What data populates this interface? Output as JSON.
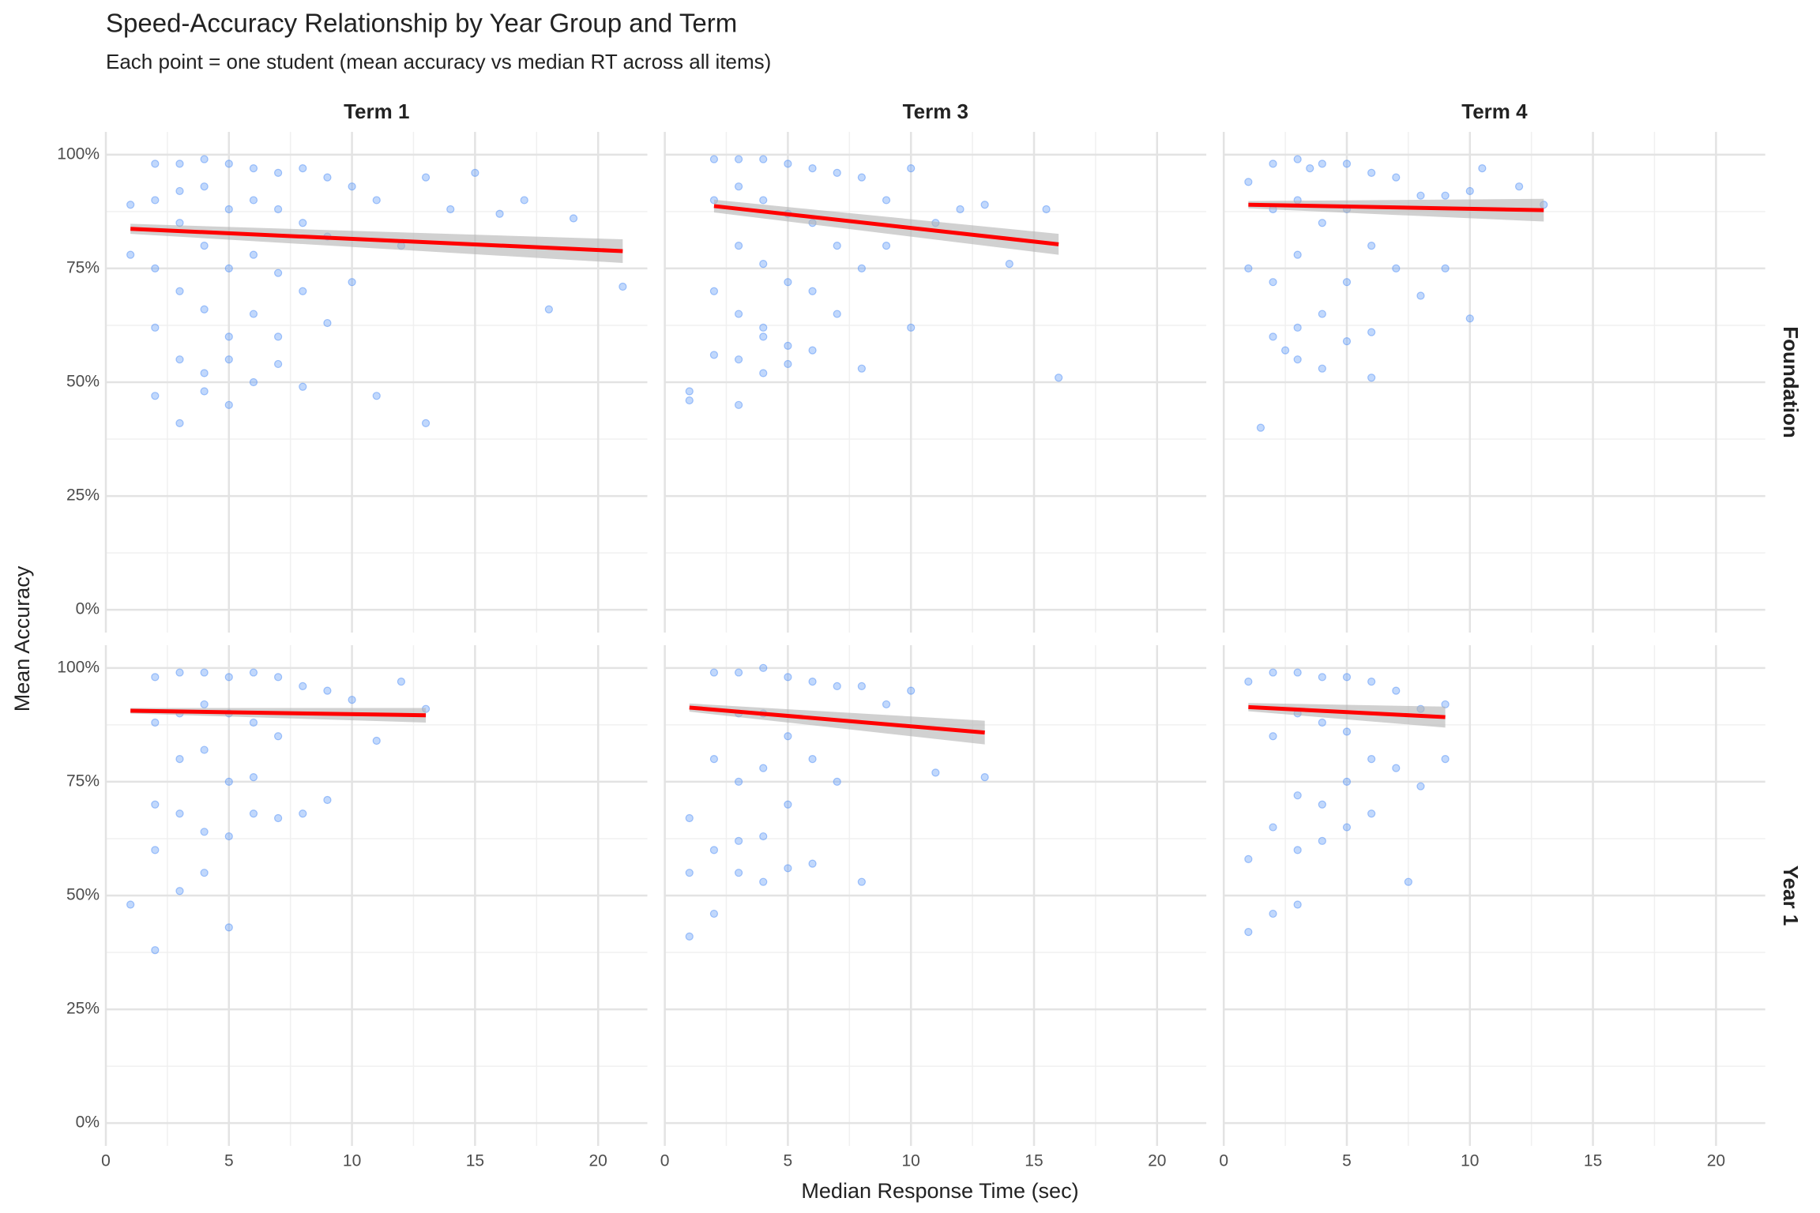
{
  "chart_data": {
    "type": "scatter",
    "title": "Speed-Accuracy Relationship by Year Group and Term",
    "subtitle": "Each point = one student (mean accuracy vs median RT across all items)",
    "x_label": "Median Response Time (sec)",
    "y_label": "Mean Accuracy",
    "columns": [
      "Term 1",
      "Term 3",
      "Term 4"
    ],
    "rows": [
      "Foundation",
      "Year 1"
    ],
    "xlim": [
      0,
      22
    ],
    "xticks": [
      0,
      5,
      10,
      15,
      20
    ],
    "x_minor_ticks": [
      2.5,
      7.5,
      12.5,
      17.5
    ],
    "ylim": [
      -5,
      105
    ],
    "yticks": [
      {
        "value": 0,
        "label": "0%"
      },
      {
        "value": 25,
        "label": "25%"
      },
      {
        "value": 50,
        "label": "50%"
      },
      {
        "value": 75,
        "label": "75%"
      },
      {
        "value": 100,
        "label": "100%"
      }
    ],
    "y_minor_ticks": [
      12.5,
      37.5,
      62.5,
      87.5
    ],
    "grid": true,
    "point_color": "#4e8ef7",
    "fit_color": "#ff0000",
    "ribbon_color": "#b3b3b3",
    "panels": [
      {
        "x": [
          1,
          1,
          2,
          2,
          2,
          2,
          2,
          3,
          3,
          3,
          3,
          3,
          3,
          4,
          4,
          4,
          4,
          4,
          4,
          5,
          5,
          5,
          5,
          5,
          5,
          6,
          6,
          6,
          6,
          6,
          7,
          7,
          7,
          7,
          7,
          8,
          8,
          8,
          8,
          9,
          9,
          9,
          10,
          10,
          11,
          11,
          12,
          13,
          13,
          14,
          15,
          16,
          17,
          18,
          19,
          21
        ],
        "y": [
          89,
          78,
          98,
          90,
          75,
          62,
          47,
          98,
          92,
          85,
          70,
          55,
          41,
          99,
          93,
          80,
          66,
          52,
          48,
          98,
          88,
          75,
          60,
          45,
          55,
          97,
          90,
          78,
          65,
          50,
          96,
          88,
          74,
          60,
          54,
          97,
          85,
          70,
          49,
          95,
          82,
          63,
          93,
          72,
          90,
          47,
          80,
          95,
          41,
          88,
          96,
          87,
          90,
          66,
          86,
          71
        ],
        "fit": {
          "x": [
            1,
            21
          ],
          "y": [
            83.7,
            78.8
          ],
          "lower": [
            82.6,
            76.2
          ],
          "upper": [
            84.8,
            81.4
          ]
        }
      },
      {
        "x": [
          1,
          1,
          2,
          2,
          2,
          2,
          3,
          3,
          3,
          3,
          3,
          3,
          4,
          4,
          4,
          4,
          4,
          4,
          5,
          5,
          5,
          5,
          5,
          6,
          6,
          6,
          6,
          7,
          7,
          7,
          8,
          8,
          8,
          9,
          9,
          10,
          10,
          11,
          12,
          13,
          14,
          15.5,
          16
        ],
        "y": [
          48,
          46,
          99,
          90,
          70,
          56,
          99,
          93,
          80,
          65,
          55,
          45,
          99,
          90,
          76,
          62,
          52,
          60,
          98,
          87,
          72,
          58,
          54,
          97,
          85,
          70,
          57,
          96,
          80,
          65,
          95,
          75,
          53,
          90,
          80,
          97,
          62,
          85,
          88,
          89,
          76,
          88,
          51
        ],
        "fit": {
          "x": [
            2,
            16
          ],
          "y": [
            88.7,
            80.3
          ],
          "lower": [
            87.3,
            78.0
          ],
          "upper": [
            90.1,
            82.6
          ]
        }
      },
      {
        "x": [
          1,
          1,
          1.5,
          2,
          2,
          2,
          2,
          2.5,
          3,
          3,
          3,
          3,
          3,
          3.5,
          4,
          4,
          4,
          4,
          5,
          5,
          5,
          5,
          6,
          6,
          6,
          6,
          7,
          7,
          8,
          8,
          9,
          9,
          10,
          10,
          10.5,
          12,
          13
        ],
        "y": [
          94,
          75,
          40,
          98,
          88,
          72,
          60,
          57,
          99,
          90,
          78,
          62,
          55,
          97,
          98,
          85,
          65,
          53,
          98,
          88,
          72,
          59,
          96,
          80,
          61,
          51,
          95,
          75,
          91,
          69,
          91,
          75,
          92,
          64,
          97,
          93,
          89
        ],
        "fit": {
          "x": [
            1,
            13
          ],
          "y": [
            89,
            87.8
          ],
          "lower": [
            88.2,
            85.3
          ],
          "upper": [
            89.8,
            90.3
          ]
        }
      },
      {
        "x": [
          1,
          2,
          2,
          2,
          2,
          2,
          3,
          3,
          3,
          3,
          3,
          4,
          4,
          4,
          4,
          4,
          5,
          5,
          5,
          5,
          5,
          6,
          6,
          6,
          6,
          7,
          7,
          7,
          8,
          8,
          9,
          9,
          10,
          11,
          12,
          13
        ],
        "y": [
          48,
          98,
          88,
          70,
          60,
          38,
          99,
          90,
          80,
          68,
          51,
          99,
          92,
          82,
          64,
          55,
          98,
          90,
          75,
          63,
          43,
          99,
          88,
          76,
          68,
          98,
          85,
          67,
          96,
          68,
          95,
          71,
          93,
          84,
          97,
          91
        ],
        "fit": {
          "x": [
            1,
            13
          ],
          "y": [
            90.6,
            89.6
          ],
          "lower": [
            90.0,
            88.0
          ],
          "upper": [
            91.2,
            91.2
          ]
        }
      },
      {
        "x": [
          1,
          1,
          1,
          2,
          2,
          2,
          2,
          3,
          3,
          3,
          3,
          3,
          4,
          4,
          4,
          4,
          4,
          5,
          5,
          5,
          5,
          6,
          6,
          6,
          7,
          7,
          8,
          8,
          9,
          10,
          11,
          13
        ],
        "y": [
          67,
          55,
          41,
          99,
          80,
          60,
          46,
          99,
          90,
          75,
          62,
          55,
          100,
          90,
          78,
          63,
          53,
          98,
          85,
          70,
          56,
          97,
          80,
          57,
          96,
          75,
          96,
          53,
          92,
          95,
          77,
          76
        ],
        "fit": {
          "x": [
            1,
            13
          ],
          "y": [
            91.3,
            85.8
          ],
          "lower": [
            90.4,
            83.2
          ],
          "upper": [
            92.2,
            88.4
          ]
        }
      },
      {
        "x": [
          1,
          1,
          1,
          2,
          2,
          2,
          2,
          3,
          3,
          3,
          3,
          3,
          4,
          4,
          4,
          4,
          5,
          5,
          5,
          5,
          6,
          6,
          6,
          7,
          7,
          7.5,
          8,
          8,
          9,
          9
        ],
        "y": [
          97,
          58,
          42,
          99,
          85,
          65,
          46,
          99,
          90,
          72,
          60,
          48,
          98,
          88,
          70,
          62,
          98,
          86,
          75,
          65,
          97,
          80,
          68,
          95,
          78,
          53,
          91,
          74,
          92,
          80
        ],
        "fit": {
          "x": [
            1,
            9
          ],
          "y": [
            91.4,
            89.2
          ],
          "lower": [
            90.5,
            86.9
          ],
          "upper": [
            92.3,
            91.5
          ]
        }
      }
    ]
  }
}
